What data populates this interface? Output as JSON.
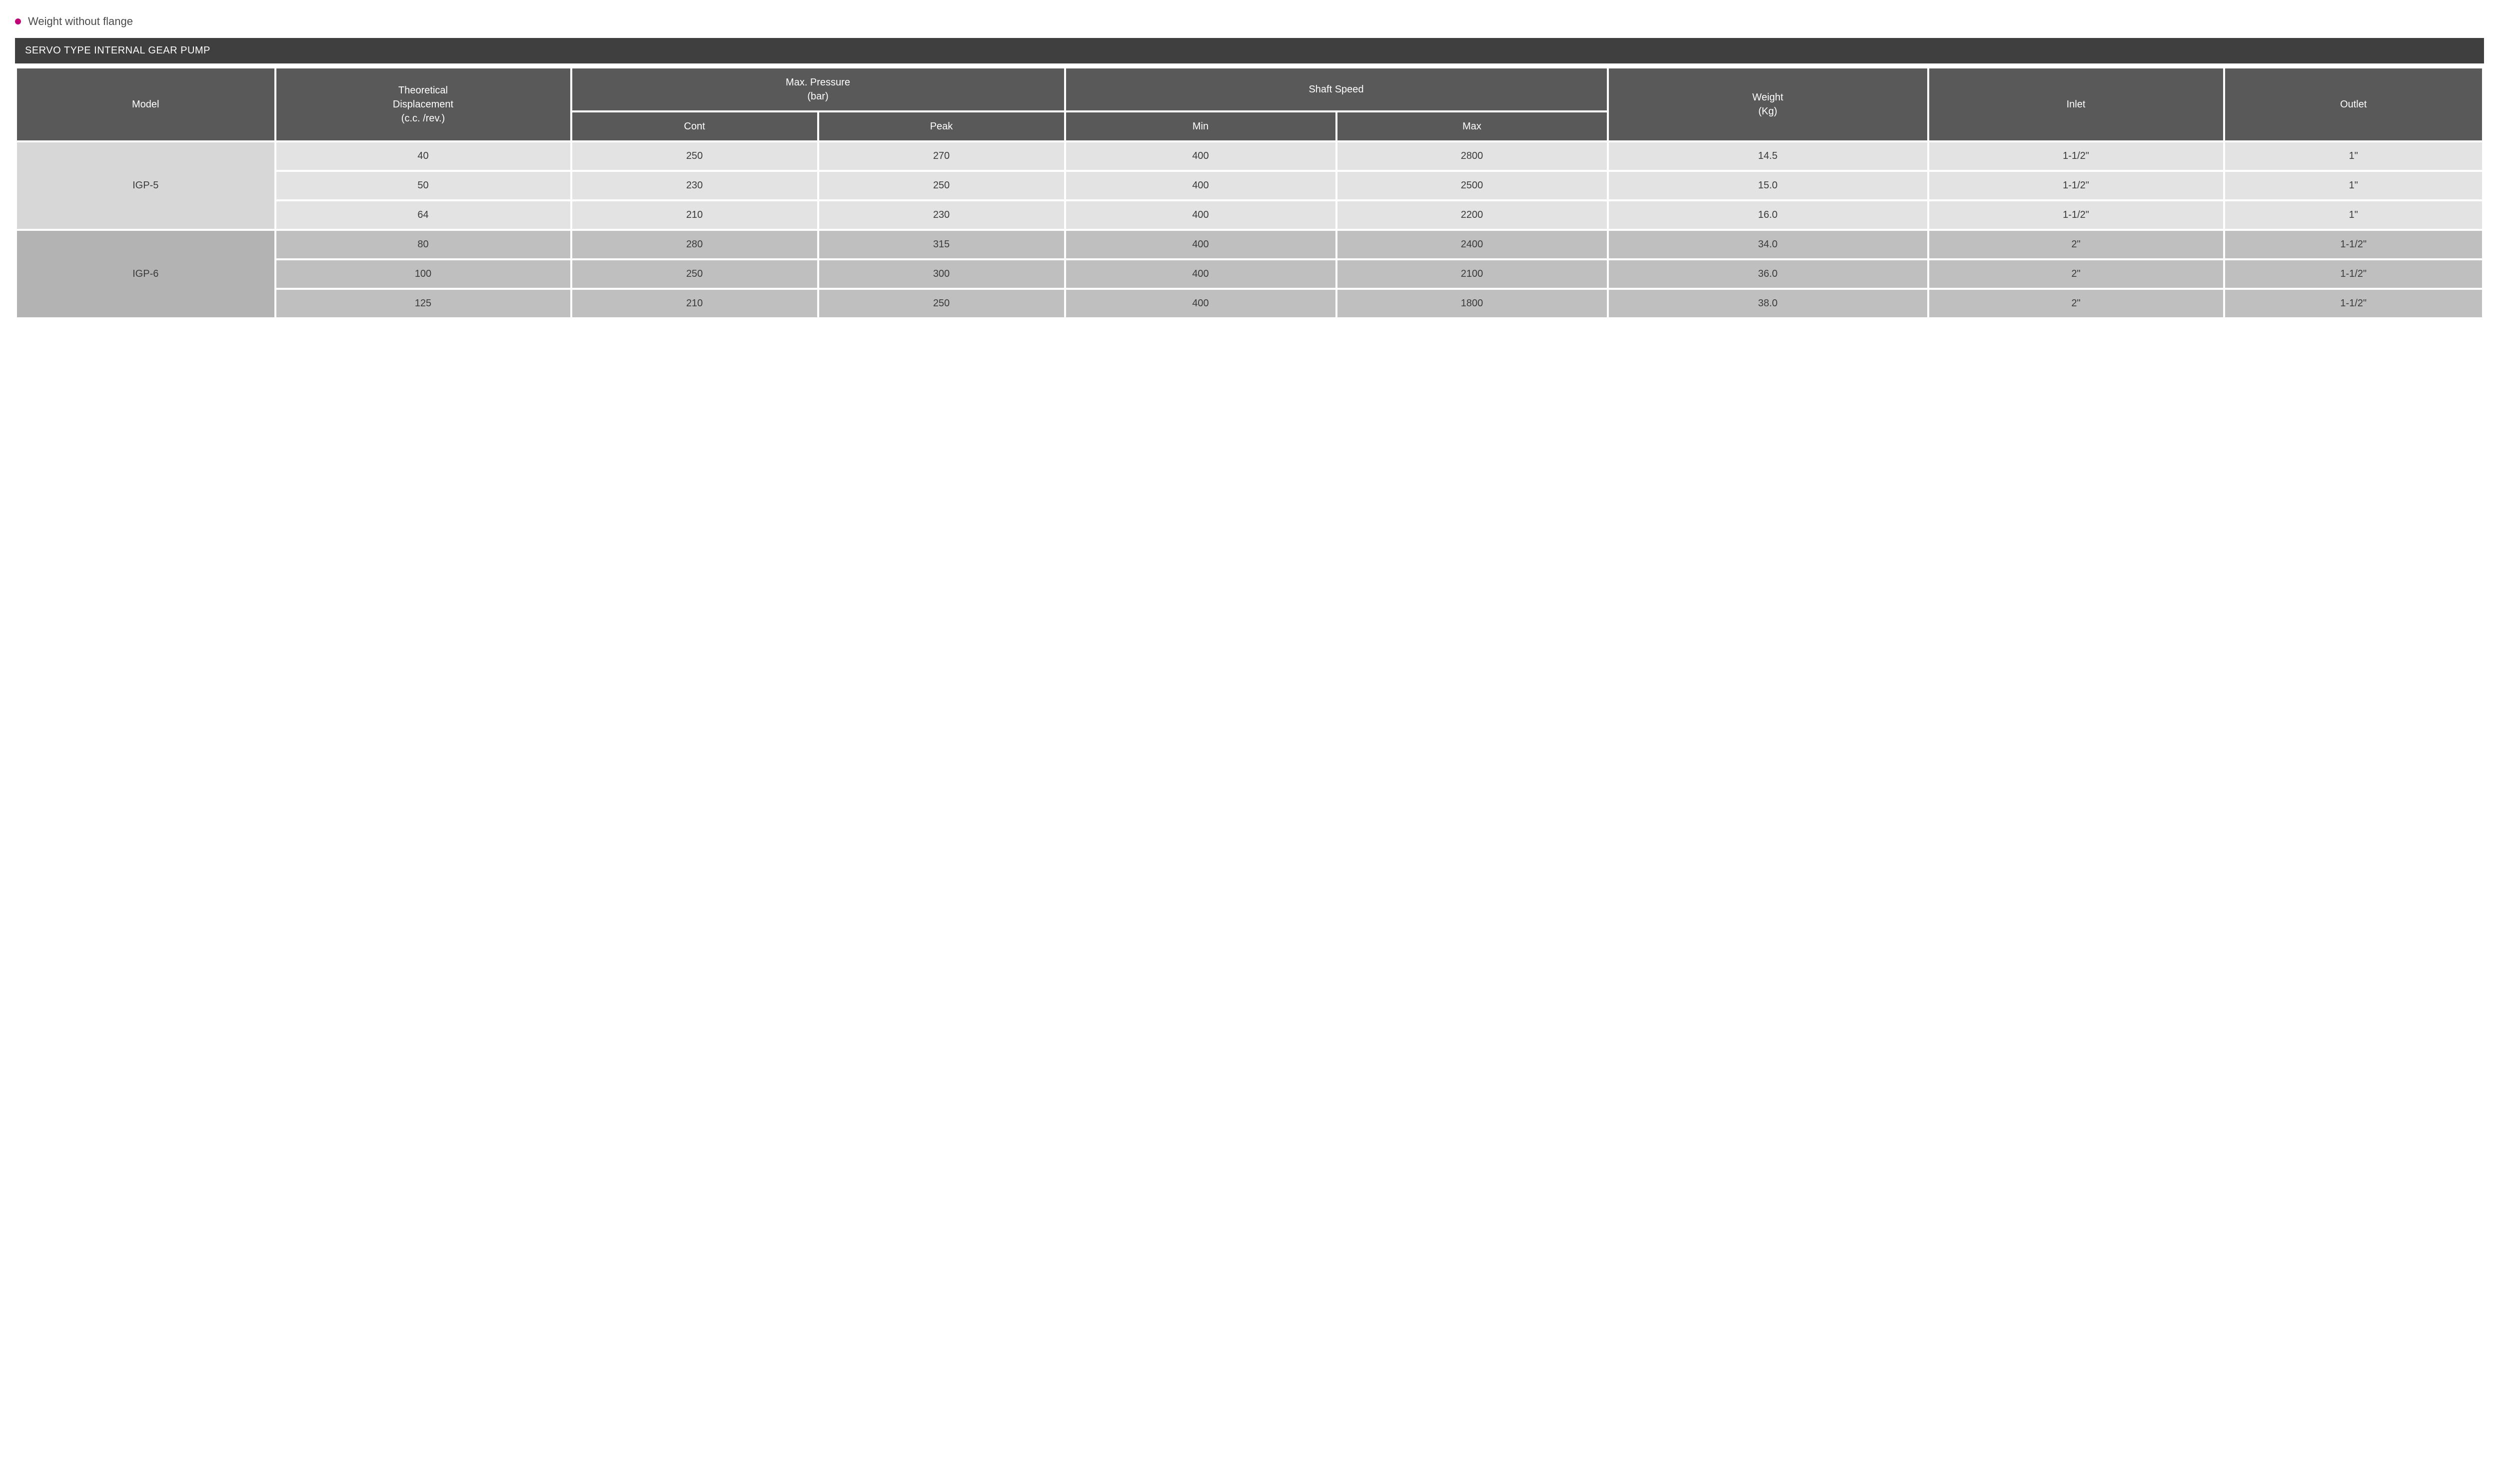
{
  "note_text": "Weight without flange",
  "title": "SERVO TYPE INTERNAL GEAR PUMP",
  "colors": {
    "bullet": "#c4007a",
    "title_bar_bg": "#3f3f3f",
    "header_bg": "#595959",
    "header_fg": "#ffffff",
    "group_bg": [
      "#e3e3e3",
      "#bfbfbf"
    ],
    "group_model_bg": [
      "#d7d7d7",
      "#b3b3b3"
    ],
    "text": "#3a3a3a"
  },
  "font": {
    "family": "Arial, Helvetica, sans-serif",
    "body_size_pt": 15,
    "header_size_pt": 15
  },
  "column_widths_pct": [
    10.5,
    12,
    10,
    10,
    11,
    11,
    13,
    12,
    10.5
  ],
  "header": {
    "row1": [
      {
        "text": "Model",
        "colspan": 1,
        "rowspan": 2
      },
      {
        "text": "Theoretical Displacement (c.c. /rev.)",
        "colspan": 1,
        "rowspan": 2
      },
      {
        "text": "Max. Pressure (bar)",
        "colspan": 2,
        "rowspan": 1
      },
      {
        "text": "Shaft Speed",
        "colspan": 2,
        "rowspan": 1
      },
      {
        "text": "Weight (Kg)",
        "colspan": 1,
        "rowspan": 2
      },
      {
        "text": "Inlet",
        "colspan": 1,
        "rowspan": 2
      },
      {
        "text": "Outlet",
        "colspan": 1,
        "rowspan": 2
      }
    ],
    "row2": [
      {
        "text": "Cont"
      },
      {
        "text": "Peak"
      },
      {
        "text": "Min"
      },
      {
        "text": "Max"
      }
    ]
  },
  "groups": [
    {
      "model": "IGP-5",
      "rows": [
        {
          "disp": "40",
          "cont": "250",
          "peak": "270",
          "min": "400",
          "max": "2800",
          "weight": "14.5",
          "inlet": "1-1/2\"",
          "outlet": "1\""
        },
        {
          "disp": "50",
          "cont": "230",
          "peak": "250",
          "min": "400",
          "max": "2500",
          "weight": "15.0",
          "inlet": "1-1/2\"",
          "outlet": "1\""
        },
        {
          "disp": "64",
          "cont": "210",
          "peak": "230",
          "min": "400",
          "max": "2200",
          "weight": "16.0",
          "inlet": "1-1/2\"",
          "outlet": "1\""
        }
      ]
    },
    {
      "model": "IGP-6",
      "rows": [
        {
          "disp": "80",
          "cont": "280",
          "peak": "315",
          "min": "400",
          "max": "2400",
          "weight": "34.0",
          "inlet": "2\"",
          "outlet": "1-1/2\""
        },
        {
          "disp": "100",
          "cont": "250",
          "peak": "300",
          "min": "400",
          "max": "2100",
          "weight": "36.0",
          "inlet": "2\"",
          "outlet": "1-1/2\""
        },
        {
          "disp": "125",
          "cont": "210",
          "peak": "250",
          "min": "400",
          "max": "1800",
          "weight": "38.0",
          "inlet": "2\"",
          "outlet": "1-1/2\""
        }
      ]
    }
  ]
}
